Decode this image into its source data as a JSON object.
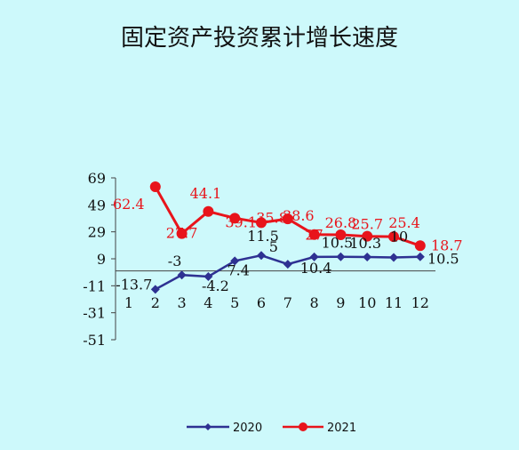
{
  "chart_data": {
    "type": "line",
    "title": "固定资产投资累计增长速度",
    "xlabel": "",
    "ylabel": "",
    "categories": [
      "1",
      "2",
      "3",
      "4",
      "5",
      "6",
      "7",
      "8",
      "9",
      "10",
      "11",
      "12"
    ],
    "yticks": [
      "69",
      "49",
      "29",
      "9",
      "-11",
      "-31",
      "-51"
    ],
    "ylim": [
      -51,
      69
    ],
    "grid": false,
    "legend_position": "bottom",
    "series": [
      {
        "name": "2020",
        "color": "#2e3192",
        "marker": "diamond",
        "values": [
          null,
          -13.7,
          -3,
          -4.2,
          7.4,
          11.5,
          5,
          10.4,
          10.5,
          10.3,
          10,
          10.5
        ],
        "labels": [
          "",
          "-13.7",
          "-3",
          "-4.2",
          "7.4",
          "11.5",
          "5",
          "10.4",
          "10.5",
          "10.3",
          "10",
          "10.5"
        ]
      },
      {
        "name": "2021",
        "color": "#e8141b",
        "marker": "circle",
        "values": [
          null,
          62.4,
          27.7,
          44.1,
          39.1,
          35.8,
          38.6,
          27,
          26.8,
          25.7,
          25.4,
          18.7
        ],
        "labels": [
          "",
          "62.4",
          "27.7",
          "44.1",
          "39.1",
          "35.8",
          "38.6",
          "27",
          "26.8",
          "25.7",
          "25.4",
          "18.7"
        ]
      }
    ]
  }
}
